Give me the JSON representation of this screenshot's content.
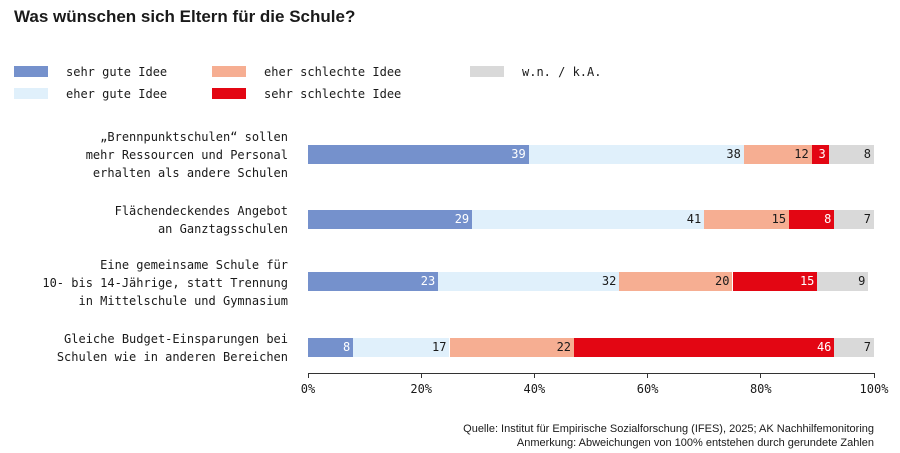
{
  "chart_data": {
    "type": "bar",
    "orientation": "horizontal",
    "stacked": true,
    "title": "Was wünschen sich Eltern für die Schule?",
    "categories": [
      "„Brennpunktschulen“ sollen\nmehr Ressourcen und Personal\nerhalten als andere Schulen",
      "Flächendeckendes Angebot\nan Ganztagsschulen",
      "Eine gemeinsame Schule für\n10- bis 14-Jährige, statt Trennung\nin Mittelschule und Gymnasium",
      "Gleiche Budget-Einsparungen bei\nSchulen wie in anderen Bereichen"
    ],
    "series": [
      {
        "name": "sehr gute Idee",
        "color": "#7591cc",
        "text_color": "#ffffff",
        "values": [
          39,
          29,
          23,
          8
        ]
      },
      {
        "name": "eher gute Idee",
        "color": "#e0f0fb",
        "text_color": "#1a1a1a",
        "values": [
          38,
          41,
          32,
          17
        ]
      },
      {
        "name": "eher schlechte Idee",
        "color": "#f6ae92",
        "text_color": "#1a1a1a",
        "values": [
          12,
          15,
          20,
          22
        ]
      },
      {
        "name": "sehr schlechte Idee",
        "color": "#e30613",
        "text_color": "#ffffff",
        "values": [
          3,
          8,
          15,
          46
        ]
      },
      {
        "name": "w.n. / k.A.",
        "color": "#d9d9d9",
        "text_color": "#1a1a1a",
        "values": [
          8,
          7,
          9,
          7
        ]
      }
    ],
    "legend_colors": {
      "sehr gute Idee": "#7591cc",
      "eher gute Idee": "#e0f0fb",
      "eher schlechte Idee": "#f6ae92",
      "sehr schlechte Idee": "#e30613",
      "w.n. / k.A.": "#d9d9d9"
    },
    "xlim": [
      0,
      100
    ],
    "xticks": [
      0,
      20,
      40,
      60,
      80,
      100
    ],
    "xtick_labels": [
      "0%",
      "20%",
      "40%",
      "60%",
      "80%",
      "100%"
    ],
    "xlabel": "",
    "ylabel": "",
    "legend_position": "top-left",
    "grid": false
  },
  "notes": {
    "source": "Quelle: Institut für Empirische Sozialforschung (IFES), 2025; AK Nachhilfemonitoring",
    "remark": "Anmerkung: Abweichungen von 100% entstehen durch gerundete Zahlen"
  }
}
